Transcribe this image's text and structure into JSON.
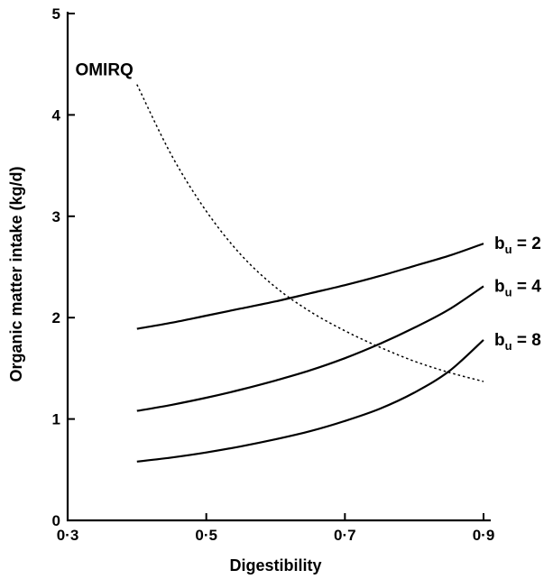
{
  "chart_data": {
    "type": "line",
    "title": "",
    "xlabel": "Digestibility",
    "ylabel": "Organic matter intake (kg/d)",
    "xlim": [
      0.3,
      0.9
    ],
    "ylim": [
      0,
      5
    ],
    "x_ticks": [
      {
        "value": 0.3,
        "label": "0·3"
      },
      {
        "value": 0.5,
        "label": "0·5"
      },
      {
        "value": 0.7,
        "label": "0·7"
      },
      {
        "value": 0.9,
        "label": "0·9"
      }
    ],
    "y_ticks": [
      {
        "value": 0,
        "label": "0"
      },
      {
        "value": 1,
        "label": "1"
      },
      {
        "value": 2,
        "label": "2"
      },
      {
        "value": 3,
        "label": "3"
      },
      {
        "value": 4,
        "label": "4"
      },
      {
        "value": 5,
        "label": "5"
      }
    ],
    "grid": false,
    "series": [
      {
        "name": "b",
        "name_sub": "u",
        "name_suffix": " = 2",
        "style": "solid",
        "x": [
          0.4,
          0.45,
          0.5,
          0.55,
          0.6,
          0.65,
          0.7,
          0.75,
          0.8,
          0.85,
          0.9
        ],
        "y": [
          1.89,
          1.95,
          2.02,
          2.09,
          2.16,
          2.24,
          2.32,
          2.41,
          2.51,
          2.61,
          2.73
        ]
      },
      {
        "name": "b",
        "name_sub": "u",
        "name_suffix": " = 4",
        "style": "solid",
        "x": [
          0.4,
          0.45,
          0.5,
          0.55,
          0.6,
          0.65,
          0.7,
          0.75,
          0.8,
          0.85,
          0.9
        ],
        "y": [
          1.08,
          1.14,
          1.21,
          1.29,
          1.38,
          1.48,
          1.6,
          1.74,
          1.9,
          2.08,
          2.31
        ]
      },
      {
        "name": "b",
        "name_sub": "u",
        "name_suffix": " = 8",
        "style": "solid",
        "x": [
          0.4,
          0.45,
          0.5,
          0.55,
          0.6,
          0.65,
          0.7,
          0.75,
          0.8,
          0.85,
          0.9
        ],
        "y": [
          0.58,
          0.62,
          0.67,
          0.73,
          0.8,
          0.88,
          0.98,
          1.1,
          1.26,
          1.47,
          1.78
        ]
      },
      {
        "name": "OMIRQ",
        "name_sub": "",
        "name_suffix": "",
        "style": "dotted",
        "x": [
          0.4,
          0.45,
          0.5,
          0.55,
          0.6,
          0.65,
          0.7,
          0.75,
          0.8,
          0.85,
          0.9
        ],
        "y": [
          4.3,
          3.6,
          3.05,
          2.62,
          2.3,
          2.06,
          1.87,
          1.71,
          1.57,
          1.46,
          1.37
        ]
      }
    ]
  }
}
